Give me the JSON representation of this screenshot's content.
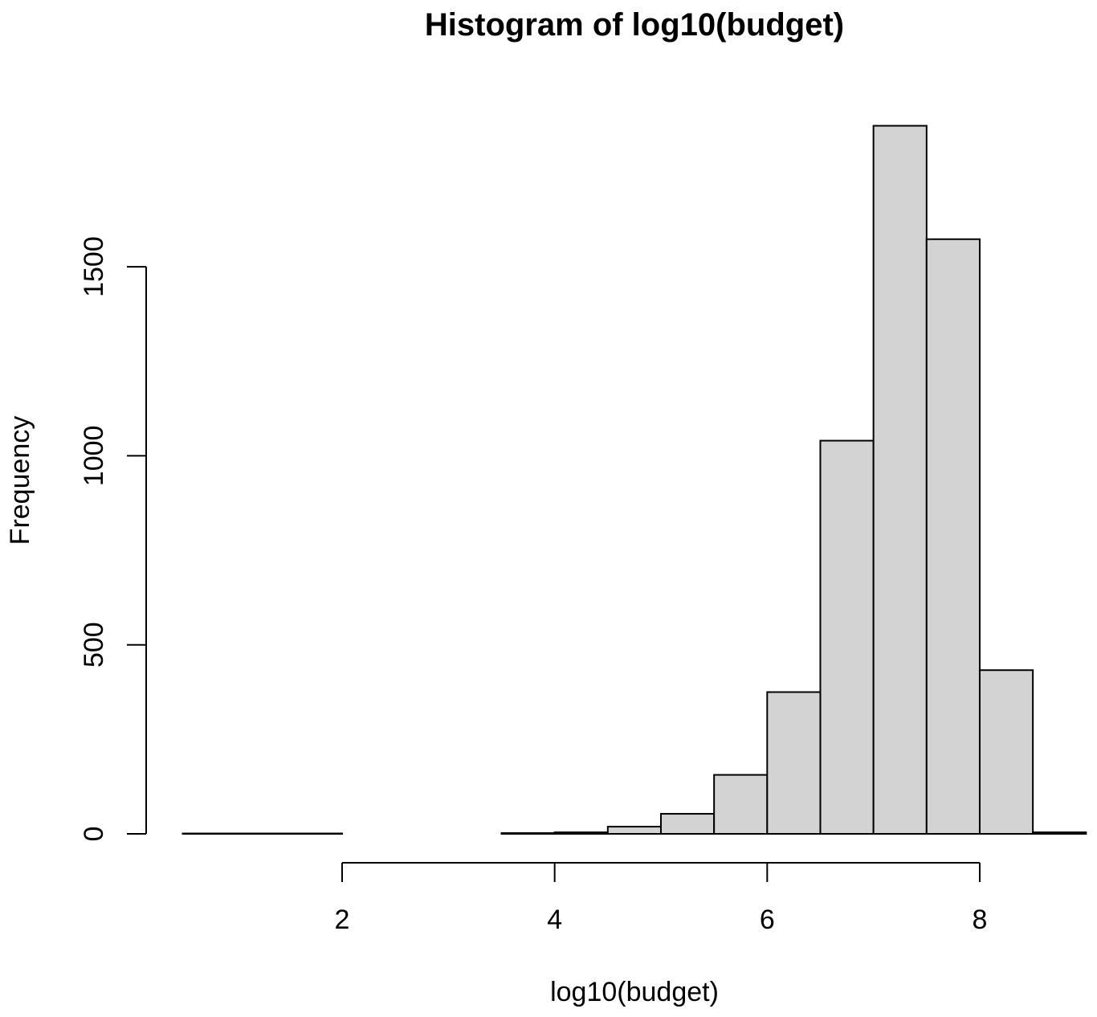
{
  "chart_data": {
    "type": "bar",
    "title": "Histogram of log10(budget)",
    "xlabel": "log10(budget)",
    "ylabel": "Frequency",
    "bins": [
      {
        "x0": 0.5,
        "x1": 1.0,
        "count": 1
      },
      {
        "x0": 1.0,
        "x1": 1.5,
        "count": 1
      },
      {
        "x0": 1.5,
        "x1": 2.0,
        "count": 1
      },
      {
        "x0": 2.0,
        "x1": 2.5,
        "count": 0
      },
      {
        "x0": 2.5,
        "x1": 3.0,
        "count": 0
      },
      {
        "x0": 3.0,
        "x1": 3.5,
        "count": 0
      },
      {
        "x0": 3.5,
        "x1": 4.0,
        "count": 2
      },
      {
        "x0": 4.0,
        "x1": 4.5,
        "count": 4
      },
      {
        "x0": 4.5,
        "x1": 5.0,
        "count": 19
      },
      {
        "x0": 5.0,
        "x1": 5.5,
        "count": 53
      },
      {
        "x0": 5.5,
        "x1": 6.0,
        "count": 156
      },
      {
        "x0": 6.0,
        "x1": 6.5,
        "count": 375
      },
      {
        "x0": 6.5,
        "x1": 7.0,
        "count": 1040
      },
      {
        "x0": 7.0,
        "x1": 7.5,
        "count": 1873
      },
      {
        "x0": 7.5,
        "x1": 8.0,
        "count": 1573
      },
      {
        "x0": 8.0,
        "x1": 8.5,
        "count": 433
      },
      {
        "x0": 8.5,
        "x1": 9.0,
        "count": 4
      }
    ],
    "x_ticks": [
      2,
      4,
      6,
      8
    ],
    "x_tick_labels": [
      "2",
      "4",
      "6",
      "8"
    ],
    "y_ticks": [
      0,
      500,
      1000,
      1500
    ],
    "y_tick_labels": [
      "0",
      "500",
      "1000",
      "1500"
    ],
    "xlim": [
      0.5,
      9.0
    ],
    "ylim": [
      0,
      1873
    ],
    "grid": false,
    "bar_fill": "#d3d3d3",
    "bar_stroke": "#000000"
  }
}
